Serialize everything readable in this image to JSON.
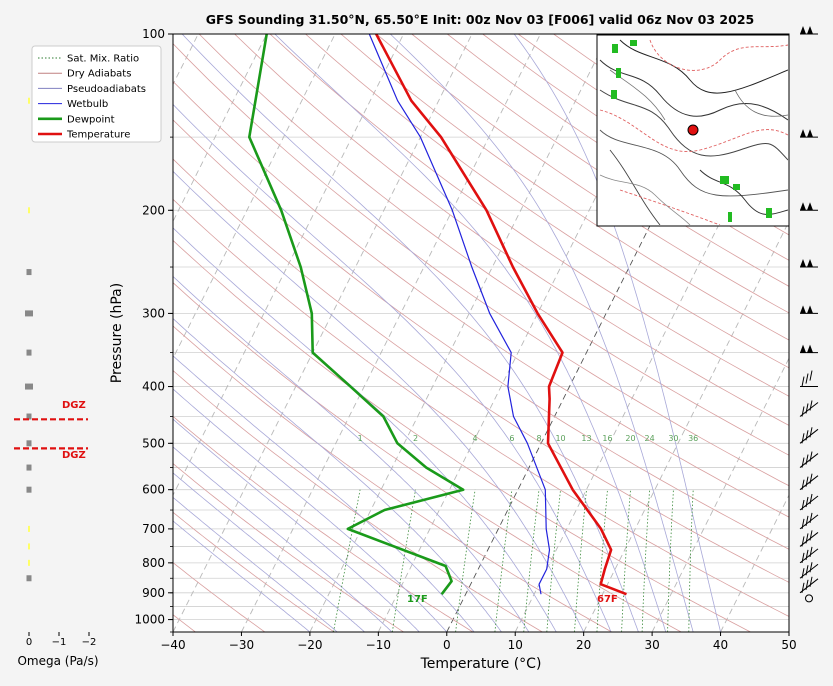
{
  "chart_data": {
    "type": "line",
    "title": "GFS Sounding 31.50°N, 65.50°E Init: 00z Nov 03 [F006] valid 06z Nov 03 2025",
    "xlabel": "Temperature (°C)",
    "ylabel": "Pressure (hPa)",
    "xlim": [
      -40,
      50
    ],
    "ylim": [
      1050,
      100
    ],
    "yscale": "log",
    "skew": true,
    "grid": true,
    "legend_position": "upper-left",
    "x_ticks": [
      -40,
      -30,
      -20,
      -10,
      0,
      10,
      20,
      30,
      40,
      50
    ],
    "x_tick_labels": [
      "−40",
      "−30",
      "−20",
      "−10",
      "0",
      "10",
      "20",
      "30",
      "40",
      "50"
    ],
    "y_ticks": [
      100,
      200,
      300,
      400,
      500,
      600,
      700,
      800,
      900,
      1000
    ],
    "y_tick_labels": [
      "100",
      "200",
      "300",
      "400",
      "500",
      "600",
      "700",
      "800",
      "900",
      "1000"
    ],
    "legend": [
      {
        "label": "Sat. Mix. Ratio",
        "color": "#2e7d32",
        "style": "dotted"
      },
      {
        "label": "Dry Adiabats",
        "color": "#c08080",
        "style": "solid"
      },
      {
        "label": "Pseudoadiabats",
        "color": "#8080c0",
        "style": "solid"
      },
      {
        "label": "Wetbulb",
        "color": "#2222dd",
        "style": "solid"
      },
      {
        "label": "Dewpoint",
        "color": "#1a9a1a",
        "style": "solid"
      },
      {
        "label": "Temperature",
        "color": "#e01010",
        "style": "solid"
      }
    ],
    "series": [
      {
        "name": "Temperature",
        "color": "#e01010",
        "points": [
          [
            905,
            23.5
          ],
          [
            870,
            19
          ],
          [
            820,
            18.5
          ],
          [
            760,
            18
          ],
          [
            700,
            15
          ],
          [
            600,
            8
          ],
          [
            500,
            1
          ],
          [
            420,
            -2
          ],
          [
            400,
            -3
          ],
          [
            350,
            -3.5
          ],
          [
            300,
            -10
          ],
          [
            250,
            -17
          ],
          [
            200,
            -25
          ],
          [
            150,
            -37
          ],
          [
            130,
            -44
          ],
          [
            100,
            -54
          ]
        ]
      },
      {
        "name": "Wetbulb",
        "color": "#2222dd",
        "points": [
          [
            905,
            11
          ],
          [
            870,
            10
          ],
          [
            820,
            10
          ],
          [
            760,
            9
          ],
          [
            700,
            7
          ],
          [
            600,
            4
          ],
          [
            500,
            -2
          ],
          [
            450,
            -6
          ],
          [
            400,
            -9
          ],
          [
            350,
            -11
          ],
          [
            300,
            -17
          ],
          [
            250,
            -23
          ],
          [
            200,
            -30
          ],
          [
            150,
            -40
          ],
          [
            130,
            -46
          ],
          [
            100,
            -55
          ]
        ]
      },
      {
        "name": "Dewpoint",
        "color": "#1a9a1a",
        "points": [
          [
            905,
            -3.5
          ],
          [
            860,
            -3
          ],
          [
            810,
            -5
          ],
          [
            700,
            -22
          ],
          [
            650,
            -18
          ],
          [
            600,
            -8
          ],
          [
            550,
            -15
          ],
          [
            500,
            -21
          ],
          [
            450,
            -25
          ],
          [
            400,
            -32
          ],
          [
            350,
            -40
          ],
          [
            300,
            -43
          ],
          [
            250,
            -48
          ],
          [
            200,
            -55
          ],
          [
            150,
            -65
          ],
          [
            100,
            -70
          ]
        ]
      }
    ],
    "saturation_mixing_ratios": [
      1,
      2,
      4,
      6,
      8,
      10,
      13,
      16,
      20,
      24,
      30,
      36
    ],
    "surface_labels": {
      "dewpoint": "17F",
      "temperature": "67F"
    },
    "omega": {
      "xlabel": "Omega (Pa/s)",
      "x_tick_labels": [
        "0",
        "−1",
        "−2"
      ],
      "dgz_label": "DGZ",
      "dgz_top_hpa": 455,
      "dgz_bottom_hpa": 510
    }
  }
}
